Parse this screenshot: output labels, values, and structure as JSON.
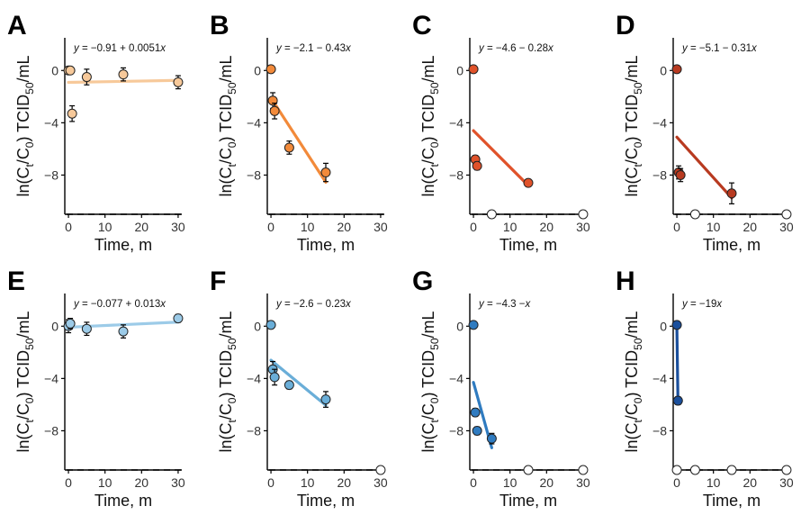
{
  "figure": {
    "xlabel": "Time, m",
    "ylabel_parts": [
      "ln(C",
      "t",
      "/C",
      "0",
      ") TCID",
      "50",
      "/mL"
    ],
    "xticks": [
      0,
      10,
      20,
      30
    ],
    "yticks": [
      0,
      -4,
      -8
    ],
    "xlim": [
      -1,
      31
    ],
    "ylim": [
      -11,
      2.5
    ],
    "detection_limit": -11,
    "grid": false
  },
  "chart_data": [
    {
      "panel": "A",
      "type": "scatter",
      "color": "#f7c99a",
      "equation": "y = −0.91 + 0.0051x",
      "fit": {
        "intercept": -0.91,
        "slope": 0.0051,
        "x_range": [
          0,
          30
        ]
      },
      "points": [
        {
          "x": 0,
          "y": 0.0,
          "err": 0.2
        },
        {
          "x": 0.5,
          "y": 0.0,
          "err": 0.2
        },
        {
          "x": 1,
          "y": -3.3,
          "err": 0.6
        },
        {
          "x": 5,
          "y": -0.5,
          "err": 0.6
        },
        {
          "x": 15,
          "y": -0.3,
          "err": 0.5
        },
        {
          "x": 30,
          "y": -0.9,
          "err": 0.5
        }
      ],
      "below_limit": []
    },
    {
      "panel": "B",
      "type": "scatter",
      "color": "#f28a3a",
      "equation": "y = −2.1 − 0.43x",
      "fit": {
        "intercept": -2.1,
        "slope": -0.43,
        "x_range": [
          0,
          15
        ]
      },
      "points": [
        {
          "x": 0,
          "y": 0.1,
          "err": 0.2
        },
        {
          "x": 0.5,
          "y": -2.3,
          "err": 0.6
        },
        {
          "x": 1,
          "y": -3.1,
          "err": 0.6
        },
        {
          "x": 5,
          "y": -5.9,
          "err": 0.5
        },
        {
          "x": 15,
          "y": -7.8,
          "err": 0.7
        }
      ],
      "below_limit": []
    },
    {
      "panel": "C",
      "type": "scatter",
      "color": "#e0522a",
      "equation": "y = −4.6 − 0.28x",
      "fit": {
        "intercept": -4.6,
        "slope": -0.28,
        "x_range": [
          0,
          15
        ]
      },
      "points": [
        {
          "x": 0,
          "y": 0.1,
          "err": 0.2
        },
        {
          "x": 0.5,
          "y": -6.8,
          "err": 0.3
        },
        {
          "x": 1,
          "y": -7.3,
          "err": 0.3
        },
        {
          "x": 15,
          "y": -8.6,
          "err": 0.2
        }
      ],
      "below_limit": [
        5,
        30
      ]
    },
    {
      "panel": "D",
      "type": "scatter",
      "color": "#b83a20",
      "equation": "y = −5.1 − 0.31x",
      "fit": {
        "intercept": -5.1,
        "slope": -0.31,
        "x_range": [
          0,
          15
        ]
      },
      "points": [
        {
          "x": 0,
          "y": 0.1,
          "err": 0.2
        },
        {
          "x": 0.5,
          "y": -7.8,
          "err": 0.5
        },
        {
          "x": 1,
          "y": -8.0,
          "err": 0.5
        },
        {
          "x": 15,
          "y": -9.4,
          "err": 0.8
        }
      ],
      "below_limit": [
        5,
        30
      ]
    },
    {
      "panel": "E",
      "type": "scatter",
      "color": "#9ccbe8",
      "equation": "y = −0.077 + 0.013x",
      "fit": {
        "intercept": -0.077,
        "slope": 0.013,
        "x_range": [
          0,
          30
        ]
      },
      "points": [
        {
          "x": 0,
          "y": 0.0,
          "err": 0.5
        },
        {
          "x": 0.5,
          "y": 0.2,
          "err": 0.4
        },
        {
          "x": 5,
          "y": -0.2,
          "err": 0.5
        },
        {
          "x": 15,
          "y": -0.4,
          "err": 0.5
        },
        {
          "x": 30,
          "y": 0.6,
          "err": 0.3
        }
      ],
      "below_limit": []
    },
    {
      "panel": "F",
      "type": "scatter",
      "color": "#6aaed8",
      "equation": "y = −2.6 − 0.23x",
      "fit": {
        "intercept": -2.6,
        "slope": -0.23,
        "x_range": [
          0,
          15
        ]
      },
      "points": [
        {
          "x": 0,
          "y": 0.1,
          "err": 0.2
        },
        {
          "x": 0.5,
          "y": -3.3,
          "err": 0.6
        },
        {
          "x": 1,
          "y": -3.9,
          "err": 0.6
        },
        {
          "x": 5,
          "y": -4.5,
          "err": 0.3
        },
        {
          "x": 15,
          "y": -5.6,
          "err": 0.6
        }
      ],
      "below_limit": [
        30
      ]
    },
    {
      "panel": "G",
      "type": "scatter",
      "color": "#2f7bc0",
      "equation": "y = −4.3 −x",
      "fit": {
        "intercept": -4.3,
        "slope": -1,
        "x_range": [
          0,
          5
        ]
      },
      "points": [
        {
          "x": 0,
          "y": 0.1,
          "err": 0.2
        },
        {
          "x": 0.5,
          "y": -6.6,
          "err": 0.3
        },
        {
          "x": 1,
          "y": -8.0,
          "err": 0.3
        },
        {
          "x": 5,
          "y": -8.6,
          "err": 0.4
        }
      ],
      "below_limit": [
        15,
        30
      ]
    },
    {
      "panel": "H",
      "type": "scatter",
      "color": "#1a4f9c",
      "equation": "y = −19x",
      "fit": {
        "intercept": 0,
        "slope": -19,
        "x_range": [
          0,
          0.3
        ]
      },
      "points": [
        {
          "x": 0,
          "y": 0.1,
          "err": 0.2
        },
        {
          "x": 0.3,
          "y": -5.7,
          "err": 0.3
        }
      ],
      "below_limit": [
        0,
        5,
        15,
        30
      ]
    }
  ]
}
